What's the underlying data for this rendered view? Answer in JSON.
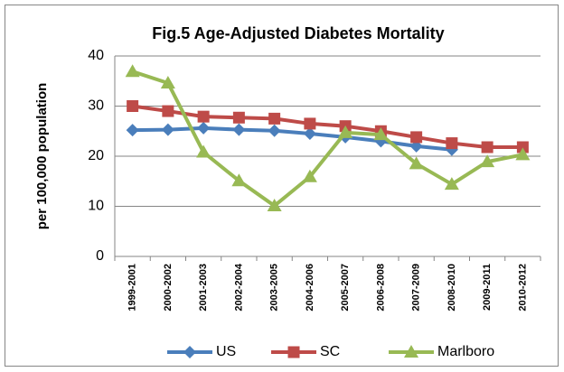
{
  "chart_data": {
    "type": "line",
    "title": "Fig.5  Age-Adjusted Diabetes Mortality",
    "y_label": "per 100,000 population",
    "categories": [
      "1999-2001",
      "2000-2002",
      "2001-2003",
      "2002-2004",
      "2003-2005",
      "2004-2006",
      "2005-2007",
      "2006-2008",
      "2007-2009",
      "2008-2010",
      "2009-2011",
      "2010-2012"
    ],
    "series": [
      {
        "name": "US",
        "color": "#4a7ebb",
        "marker": "diamond",
        "values": [
          25.2,
          25.3,
          25.6,
          25.3,
          25.1,
          24.5,
          23.8,
          23.0,
          22.0,
          21.3,
          null,
          null
        ]
      },
      {
        "name": "SC",
        "color": "#be4b48",
        "marker": "square",
        "values": [
          30.0,
          29.0,
          27.9,
          27.7,
          27.5,
          26.5,
          26.0,
          25.0,
          23.8,
          22.6,
          21.8,
          21.8
        ]
      },
      {
        "name": "Marlboro",
        "color": "#98b954",
        "marker": "triangle",
        "values": [
          36.9,
          34.6,
          20.8,
          15.1,
          10.1,
          15.9,
          24.7,
          24.3,
          18.5,
          14.4,
          18.9,
          20.3
        ]
      }
    ],
    "ylim": [
      0,
      40
    ],
    "yticks": [
      0,
      10,
      20,
      30,
      40
    ],
    "grid": true,
    "legend": "bottom"
  }
}
